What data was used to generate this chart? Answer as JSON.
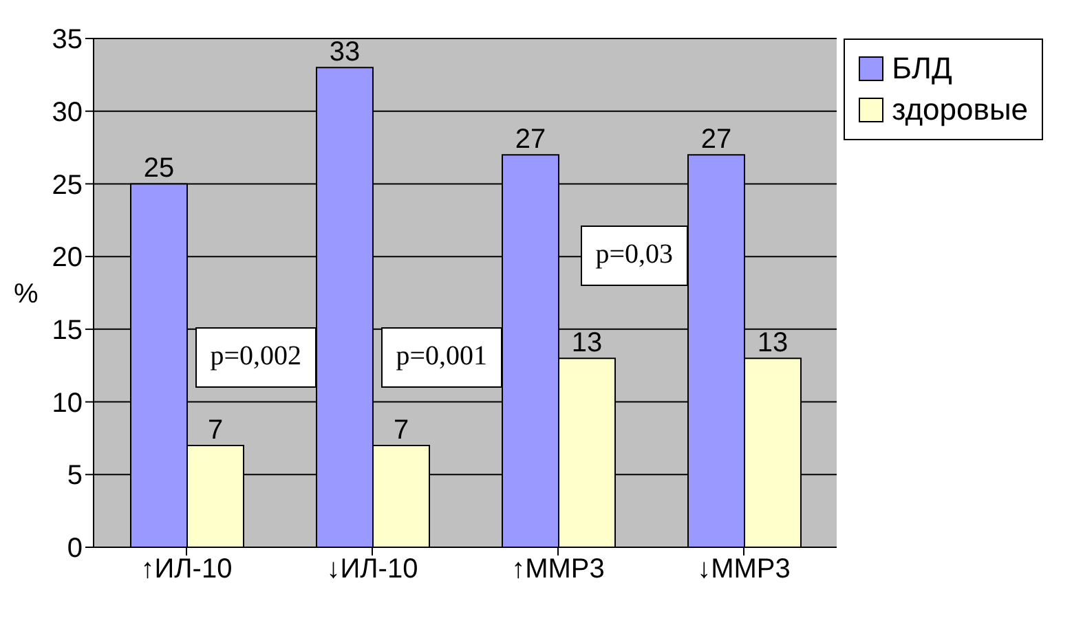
{
  "chart_data": {
    "type": "bar",
    "categories": [
      "↑ИЛ-10",
      "↓ИЛ-10",
      "↑ММР3",
      "↓ММР3"
    ],
    "series": [
      {
        "name": "БЛД",
        "color": "#9999ff",
        "values": [
          25,
          33,
          27,
          27
        ]
      },
      {
        "name": "здоровые",
        "color": "#ffffcc",
        "values": [
          7,
          7,
          13,
          13
        ]
      }
    ],
    "ylabel": "%",
    "ylim": [
      0,
      35
    ],
    "yticks": [
      0,
      5,
      10,
      15,
      20,
      25,
      30,
      35
    ],
    "grid": "y",
    "legend": "top right",
    "data_labels": true,
    "annotations": [
      "p=0,002",
      "p=0,001",
      "p=0,03"
    ]
  }
}
